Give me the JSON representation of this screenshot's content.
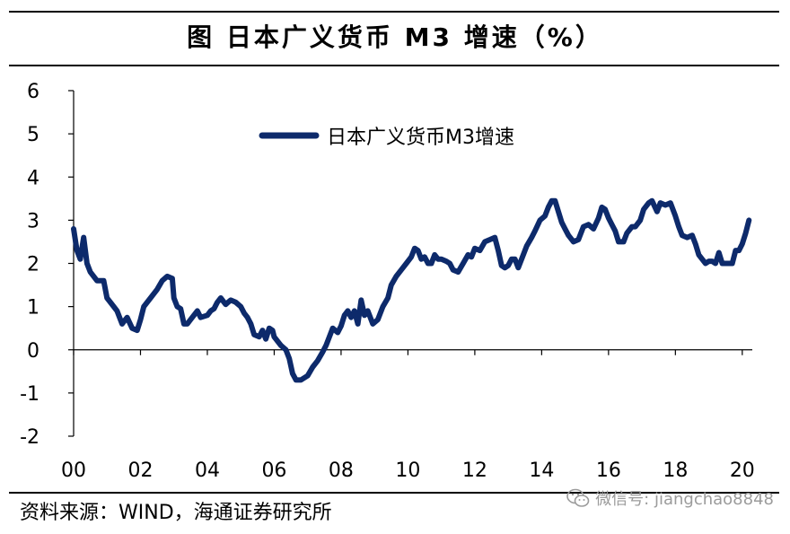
{
  "header": {
    "title": "图  日本广义货币 M3 增速（%）"
  },
  "footer": {
    "source": "资料来源：WIND，海通证券研究所",
    "watermark_text": "微信号: jiangchao8848",
    "watermark_icon": "wechat-icon"
  },
  "colors": {
    "series": "#0d2a6b",
    "axis": "#000000",
    "watermark": "#9b9b9b"
  },
  "chart_data": {
    "type": "line",
    "title": "",
    "xlabel": "",
    "ylabel": "",
    "x_tick_labels": [
      "00",
      "02",
      "04",
      "06",
      "08",
      "10",
      "12",
      "14",
      "16",
      "18",
      "20"
    ],
    "x_tick_values": [
      2000,
      2002,
      2004,
      2006,
      2008,
      2010,
      2012,
      2014,
      2016,
      2018,
      2020
    ],
    "xlim": [
      2000,
      2020.3
    ],
    "y_tick_labels": [
      "-2",
      "-1",
      "0",
      "1",
      "2",
      "3",
      "4",
      "5",
      "6"
    ],
    "y_tick_values": [
      -2,
      -1,
      0,
      1,
      2,
      3,
      4,
      5,
      6
    ],
    "ylim": [
      -2,
      6
    ],
    "grid": false,
    "legend_position": "top-center",
    "series": [
      {
        "name": "日本广义货币M3增速",
        "points": [
          [
            2000.0,
            2.8
          ],
          [
            2000.1,
            2.3
          ],
          [
            2000.2,
            2.1
          ],
          [
            2000.3,
            2.6
          ],
          [
            2000.4,
            2.0
          ],
          [
            2000.5,
            1.8
          ],
          [
            2000.7,
            1.6
          ],
          [
            2000.9,
            1.6
          ],
          [
            2001.0,
            1.2
          ],
          [
            2001.2,
            1.0
          ],
          [
            2001.3,
            0.9
          ],
          [
            2001.45,
            0.6
          ],
          [
            2001.6,
            0.75
          ],
          [
            2001.75,
            0.5
          ],
          [
            2001.9,
            0.45
          ],
          [
            2002.0,
            0.7
          ],
          [
            2002.1,
            1.0
          ],
          [
            2002.3,
            1.2
          ],
          [
            2002.5,
            1.4
          ],
          [
            2002.65,
            1.6
          ],
          [
            2002.8,
            1.7
          ],
          [
            2002.95,
            1.65
          ],
          [
            2003.0,
            1.2
          ],
          [
            2003.1,
            1.0
          ],
          [
            2003.2,
            0.95
          ],
          [
            2003.3,
            0.6
          ],
          [
            2003.4,
            0.6
          ],
          [
            2003.5,
            0.7
          ],
          [
            2003.7,
            0.9
          ],
          [
            2003.8,
            0.75
          ],
          [
            2004.0,
            0.8
          ],
          [
            2004.1,
            0.9
          ],
          [
            2004.2,
            0.95
          ],
          [
            2004.3,
            1.1
          ],
          [
            2004.4,
            1.2
          ],
          [
            2004.55,
            1.05
          ],
          [
            2004.7,
            1.15
          ],
          [
            2004.85,
            1.1
          ],
          [
            2005.0,
            1.0
          ],
          [
            2005.1,
            0.85
          ],
          [
            2005.2,
            0.75
          ],
          [
            2005.3,
            0.6
          ],
          [
            2005.4,
            0.35
          ],
          [
            2005.55,
            0.3
          ],
          [
            2005.65,
            0.45
          ],
          [
            2005.75,
            0.25
          ],
          [
            2005.85,
            0.5
          ],
          [
            2005.95,
            0.45
          ],
          [
            2006.0,
            0.3
          ],
          [
            2006.2,
            0.1
          ],
          [
            2006.35,
            0.0
          ],
          [
            2006.45,
            -0.2
          ],
          [
            2006.55,
            -0.55
          ],
          [
            2006.65,
            -0.7
          ],
          [
            2006.8,
            -0.7
          ],
          [
            2007.0,
            -0.6
          ],
          [
            2007.15,
            -0.4
          ],
          [
            2007.3,
            -0.25
          ],
          [
            2007.45,
            -0.05
          ],
          [
            2007.55,
            0.1
          ],
          [
            2007.65,
            0.3
          ],
          [
            2007.75,
            0.5
          ],
          [
            2007.9,
            0.4
          ],
          [
            2008.0,
            0.55
          ],
          [
            2008.1,
            0.8
          ],
          [
            2008.2,
            0.9
          ],
          [
            2008.3,
            0.75
          ],
          [
            2008.4,
            0.9
          ],
          [
            2008.5,
            0.6
          ],
          [
            2008.6,
            1.15
          ],
          [
            2008.7,
            0.8
          ],
          [
            2008.8,
            0.9
          ],
          [
            2008.95,
            0.6
          ],
          [
            2009.1,
            0.7
          ],
          [
            2009.25,
            1.0
          ],
          [
            2009.4,
            1.2
          ],
          [
            2009.5,
            1.5
          ],
          [
            2009.65,
            1.7
          ],
          [
            2009.8,
            1.85
          ],
          [
            2009.95,
            2.0
          ],
          [
            2010.1,
            2.15
          ],
          [
            2010.2,
            2.35
          ],
          [
            2010.3,
            2.3
          ],
          [
            2010.4,
            2.1
          ],
          [
            2010.5,
            2.15
          ],
          [
            2010.6,
            2.0
          ],
          [
            2010.7,
            2.0
          ],
          [
            2010.8,
            2.2
          ],
          [
            2010.9,
            2.1
          ],
          [
            2011.0,
            2.1
          ],
          [
            2011.15,
            2.05
          ],
          [
            2011.25,
            2.0
          ],
          [
            2011.35,
            1.85
          ],
          [
            2011.5,
            1.8
          ],
          [
            2011.65,
            2.0
          ],
          [
            2011.8,
            2.2
          ],
          [
            2011.9,
            2.15
          ],
          [
            2012.0,
            2.35
          ],
          [
            2012.15,
            2.3
          ],
          [
            2012.3,
            2.5
          ],
          [
            2012.45,
            2.55
          ],
          [
            2012.6,
            2.6
          ],
          [
            2012.7,
            2.3
          ],
          [
            2012.8,
            1.95
          ],
          [
            2012.9,
            1.9
          ],
          [
            2013.0,
            1.95
          ],
          [
            2013.1,
            2.1
          ],
          [
            2013.2,
            2.1
          ],
          [
            2013.3,
            1.9
          ],
          [
            2013.45,
            2.2
          ],
          [
            2013.55,
            2.4
          ],
          [
            2013.7,
            2.6
          ],
          [
            2013.8,
            2.75
          ],
          [
            2013.95,
            3.0
          ],
          [
            2014.1,
            3.1
          ],
          [
            2014.2,
            3.3
          ],
          [
            2014.3,
            3.45
          ],
          [
            2014.4,
            3.45
          ],
          [
            2014.5,
            3.2
          ],
          [
            2014.6,
            2.95
          ],
          [
            2014.7,
            2.8
          ],
          [
            2014.8,
            2.65
          ],
          [
            2014.95,
            2.5
          ],
          [
            2015.1,
            2.55
          ],
          [
            2015.25,
            2.85
          ],
          [
            2015.4,
            2.9
          ],
          [
            2015.55,
            2.8
          ],
          [
            2015.7,
            3.05
          ],
          [
            2015.8,
            3.3
          ],
          [
            2015.9,
            3.25
          ],
          [
            2016.0,
            3.05
          ],
          [
            2016.1,
            2.9
          ],
          [
            2016.2,
            2.75
          ],
          [
            2016.3,
            2.5
          ],
          [
            2016.45,
            2.5
          ],
          [
            2016.55,
            2.7
          ],
          [
            2016.7,
            2.85
          ],
          [
            2016.8,
            2.85
          ],
          [
            2016.95,
            3.0
          ],
          [
            2017.05,
            3.25
          ],
          [
            2017.2,
            3.4
          ],
          [
            2017.3,
            3.45
          ],
          [
            2017.45,
            3.2
          ],
          [
            2017.55,
            3.4
          ],
          [
            2017.7,
            3.35
          ],
          [
            2017.85,
            3.4
          ],
          [
            2018.0,
            3.1
          ],
          [
            2018.1,
            2.85
          ],
          [
            2018.2,
            2.65
          ],
          [
            2018.35,
            2.6
          ],
          [
            2018.5,
            2.65
          ],
          [
            2018.6,
            2.45
          ],
          [
            2018.7,
            2.2
          ],
          [
            2018.8,
            2.1
          ],
          [
            2018.9,
            2.0
          ],
          [
            2019.0,
            2.05
          ],
          [
            2019.1,
            2.05
          ],
          [
            2019.2,
            2.0
          ],
          [
            2019.3,
            2.25
          ],
          [
            2019.4,
            2.0
          ],
          [
            2019.5,
            2.0
          ],
          [
            2019.6,
            2.0
          ],
          [
            2019.7,
            2.0
          ],
          [
            2019.8,
            2.3
          ],
          [
            2019.9,
            2.3
          ],
          [
            2020.0,
            2.45
          ],
          [
            2020.1,
            2.7
          ],
          [
            2020.2,
            3.0
          ]
        ]
      }
    ]
  }
}
